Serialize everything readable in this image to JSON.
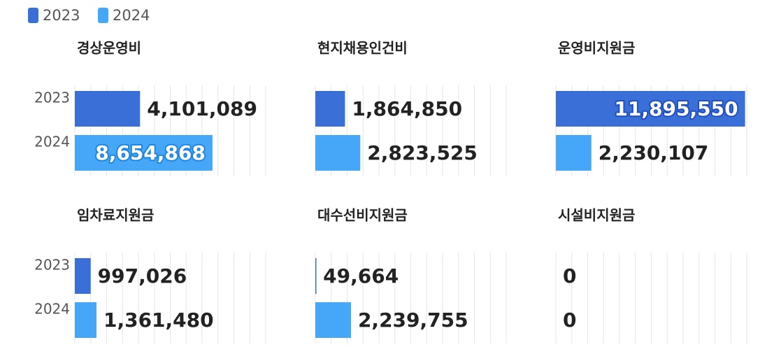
{
  "legend": [
    {
      "name": "2023",
      "color": "#3b6fd8"
    },
    {
      "name": "2024",
      "color": "#46a6f7"
    }
  ],
  "chart_data": [
    {
      "type": "bar",
      "title": "경상운영비",
      "categories": [
        "2023",
        "2024"
      ],
      "values": [
        4101089,
        8654868
      ],
      "value_labels": [
        "4,101,089",
        "8,654,868"
      ],
      "xlim": [
        0,
        12000000
      ],
      "xticks": [
        0,
        1000000,
        2000000,
        3000000,
        4000000,
        5000000,
        6000000,
        7000000,
        8000000,
        9000000,
        10000000,
        11000000,
        12000000
      ],
      "grid": true
    },
    {
      "type": "bar",
      "title": "현지채용인건비",
      "values": [
        1864850,
        2823525
      ],
      "value_labels": [
        "1,864,850",
        "2,823,525"
      ],
      "xlim": [
        0,
        12000000
      ],
      "xticks": [
        0,
        1000000,
        2000000,
        3000000,
        4000000,
        5000000,
        6000000,
        7000000,
        8000000,
        9000000,
        10000000,
        11000000,
        12000000
      ],
      "grid": true
    },
    {
      "type": "bar",
      "title": "운영비지원금",
      "values": [
        11895550,
        2230107
      ],
      "value_labels": [
        "11,895,550",
        "2,230,107"
      ],
      "xlim": [
        0,
        12000000
      ],
      "xticks": [
        0,
        1000000,
        2000000,
        3000000,
        4000000,
        5000000,
        6000000,
        7000000,
        8000000,
        9000000,
        10000000,
        11000000,
        12000000
      ],
      "grid": true
    },
    {
      "type": "bar",
      "title": "임차료지원금",
      "categories": [
        "2023",
        "2024"
      ],
      "values": [
        997026,
        1361480
      ],
      "value_labels": [
        "997,026",
        "1,361,480"
      ],
      "xlim": [
        0,
        12000000
      ],
      "xticks": [
        0,
        1000000,
        2000000,
        3000000,
        4000000,
        5000000,
        6000000,
        7000000,
        8000000,
        9000000,
        10000000,
        11000000,
        12000000
      ],
      "grid": true
    },
    {
      "type": "bar",
      "title": "대수선비지원금",
      "values": [
        49664,
        2239755
      ],
      "value_labels": [
        "49,664",
        "2,239,755"
      ],
      "xlim": [
        0,
        12000000
      ],
      "xticks": [
        0,
        1000000,
        2000000,
        3000000,
        4000000,
        5000000,
        6000000,
        7000000,
        8000000,
        9000000,
        10000000,
        11000000,
        12000000
      ],
      "grid": true
    },
    {
      "type": "bar",
      "title": "시설비지원금",
      "values": [
        0,
        0
      ],
      "xlim": [
        0,
        12000000
      ],
      "xticks": [
        0,
        1000000,
        2000000,
        3000000,
        4000000,
        5000000,
        6000000,
        7000000,
        8000000,
        9000000,
        10000000,
        11000000,
        12000000
      ],
      "grid": true
    }
  ]
}
